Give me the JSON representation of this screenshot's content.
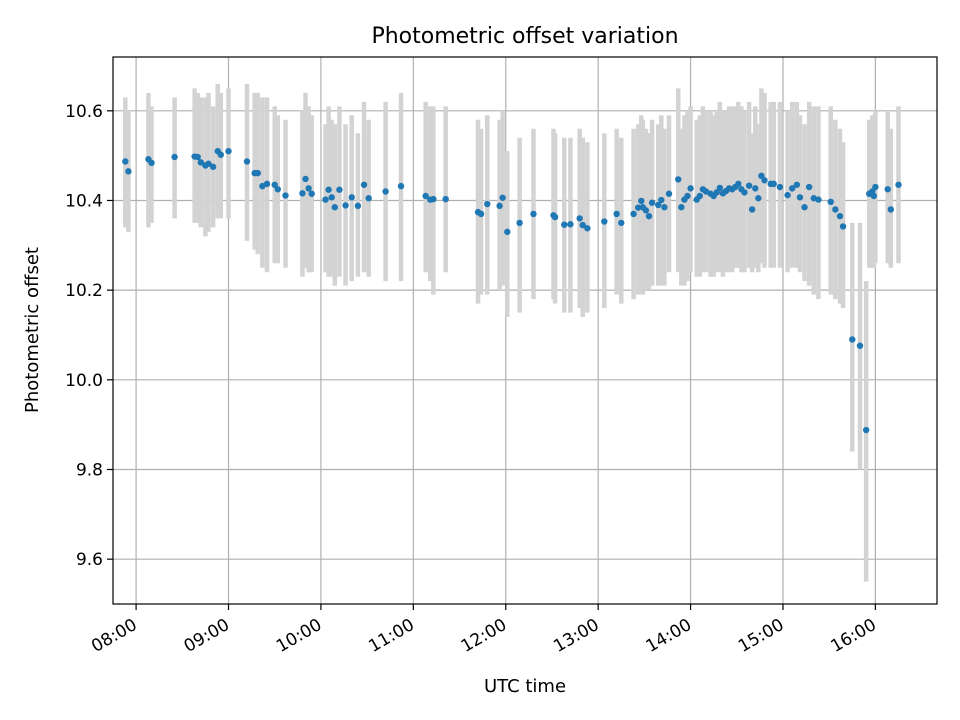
{
  "chart_data": {
    "type": "scatter",
    "title": "Photometric offset variation",
    "xlabel": "UTC time",
    "ylabel": "Photometric offset",
    "xlim": [
      "07:45",
      "16:40"
    ],
    "ylim": [
      9.5,
      10.72
    ],
    "x_ticks": [
      "08:00",
      "09:00",
      "10:00",
      "11:00",
      "12:00",
      "13:00",
      "14:00",
      "15:00",
      "16:00"
    ],
    "y_ticks": [
      "9.6",
      "9.8",
      "10.0",
      "10.2",
      "10.4",
      "10.6"
    ],
    "grid": true,
    "colors": {
      "point": "#1f77b4",
      "error_bar": "#d3d3d3"
    },
    "series": [
      {
        "x": [
          "07:53",
          "07:55",
          "08:08",
          "08:10",
          "08:25",
          "08:38",
          "08:40",
          "08:42",
          "08:45",
          "08:47",
          "08:50",
          "08:53",
          "08:55",
          "09:00",
          "09:12",
          "09:17",
          "09:19",
          "09:22",
          "09:25",
          "09:30",
          "09:32",
          "09:37",
          "09:48",
          "09:50",
          "09:52",
          "09:54",
          "10:03",
          "10:05",
          "10:07",
          "10:09",
          "10:12",
          "10:16",
          "10:20",
          "10:24",
          "10:28",
          "10:31",
          "10:42",
          "10:52",
          "11:08",
          "11:11",
          "11:13",
          "11:21",
          "11:42",
          "11:44",
          "11:48",
          "11:56",
          "11:58",
          "12:01",
          "12:09",
          "12:18",
          "12:31",
          "12:32",
          "12:38",
          "12:42",
          "12:48",
          "12:50",
          "12:53",
          "13:04",
          "13:12",
          "13:15",
          "13:23",
          "13:26",
          "13:28",
          "13:29",
          "13:31",
          "13:33",
          "13:35",
          "13:39",
          "13:41",
          "13:43",
          "13:46",
          "13:52",
          "13:54",
          "13:56",
          "13:58",
          "14:00",
          "14:04",
          "14:06",
          "14:08",
          "14:10",
          "14:13",
          "14:15",
          "14:17",
          "14:19",
          "14:21",
          "14:23",
          "14:25",
          "14:27",
          "14:29",
          "14:31",
          "14:33",
          "14:35",
          "14:38",
          "14:40",
          "14:42",
          "14:44",
          "14:46",
          "14:48",
          "14:52",
          "14:54",
          "14:58",
          "15:03",
          "15:06",
          "15:09",
          "15:11",
          "15:14",
          "15:17",
          "15:20",
          "15:23",
          "15:31",
          "15:34",
          "15:37",
          "15:39",
          "15:45",
          "15:50",
          "15:54",
          "15:56",
          "15:58",
          "15:59",
          "16:00",
          "16:08",
          "16:10",
          "16:15"
        ],
        "y": [
          10.487,
          10.465,
          10.492,
          10.484,
          10.497,
          10.498,
          10.497,
          10.485,
          10.478,
          10.482,
          10.475,
          10.51,
          10.502,
          10.51,
          10.487,
          10.461,
          10.461,
          10.432,
          10.437,
          10.435,
          10.425,
          10.411,
          10.416,
          10.448,
          10.427,
          10.415,
          10.402,
          10.424,
          10.407,
          10.385,
          10.424,
          10.389,
          10.407,
          10.388,
          10.435,
          10.405,
          10.42,
          10.432,
          10.41,
          10.402,
          10.403,
          10.403,
          10.374,
          10.37,
          10.392,
          10.388,
          10.406,
          10.33,
          10.35,
          10.37,
          10.367,
          10.363,
          10.346,
          10.347,
          10.36,
          10.345,
          10.338,
          10.353,
          10.37,
          10.35,
          10.37,
          10.384,
          10.399,
          10.385,
          10.378,
          10.365,
          10.395,
          10.39,
          10.401,
          10.385,
          10.415,
          10.447,
          10.385,
          10.402,
          10.41,
          10.427,
          10.402,
          10.41,
          10.425,
          10.42,
          10.415,
          10.41,
          10.418,
          10.428,
          10.416,
          10.421,
          10.427,
          10.425,
          10.43,
          10.437,
          10.425,
          10.418,
          10.433,
          10.38,
          10.427,
          10.405,
          10.455,
          10.445,
          10.437,
          10.437,
          10.43,
          10.412,
          10.427,
          10.435,
          10.407,
          10.385,
          10.43,
          10.405,
          10.402,
          10.397,
          10.38,
          10.365,
          10.342,
          10.09,
          10.076,
          9.888,
          10.415,
          10.42,
          10.41,
          10.43,
          10.425,
          10.38,
          10.435
        ],
        "error_low": [
          10.34,
          10.33,
          10.34,
          10.35,
          10.36,
          10.35,
          10.35,
          10.34,
          10.32,
          10.33,
          10.34,
          10.36,
          10.36,
          10.36,
          10.31,
          10.29,
          10.28,
          10.25,
          10.24,
          10.26,
          10.26,
          10.25,
          10.23,
          10.25,
          10.24,
          10.24,
          10.24,
          10.23,
          10.23,
          10.21,
          10.23,
          10.21,
          10.22,
          10.23,
          10.24,
          10.23,
          10.22,
          10.22,
          10.24,
          10.22,
          10.19,
          10.24,
          10.17,
          10.19,
          10.19,
          10.2,
          10.21,
          10.14,
          10.15,
          10.18,
          10.18,
          10.17,
          10.15,
          10.15,
          10.16,
          10.14,
          10.15,
          10.16,
          10.19,
          10.17,
          10.18,
          10.19,
          10.2,
          10.19,
          10.2,
          10.2,
          10.21,
          10.21,
          10.21,
          10.21,
          10.24,
          10.24,
          10.21,
          10.21,
          10.22,
          10.24,
          10.23,
          10.23,
          10.24,
          10.24,
          10.23,
          10.23,
          10.24,
          10.24,
          10.23,
          10.24,
          10.24,
          10.24,
          10.25,
          10.25,
          10.24,
          10.24,
          10.25,
          10.24,
          10.25,
          10.24,
          10.26,
          10.25,
          10.25,
          10.25,
          10.25,
          10.24,
          10.25,
          10.25,
          10.24,
          10.22,
          10.21,
          10.19,
          10.18,
          10.19,
          10.18,
          10.17,
          10.16,
          9.84,
          9.8,
          9.55,
          10.25,
          10.25,
          10.25,
          10.26,
          10.26,
          10.25,
          10.26
        ],
        "error_high": [
          10.63,
          10.6,
          10.64,
          10.61,
          10.63,
          10.65,
          10.64,
          10.63,
          10.63,
          10.64,
          10.61,
          10.66,
          10.64,
          10.65,
          10.66,
          10.64,
          10.64,
          10.63,
          10.63,
          10.61,
          10.59,
          10.58,
          10.6,
          10.64,
          10.61,
          10.59,
          10.57,
          10.61,
          10.58,
          10.57,
          10.61,
          10.57,
          10.59,
          10.55,
          10.62,
          10.58,
          10.62,
          10.64,
          10.62,
          10.61,
          10.61,
          10.61,
          10.58,
          10.56,
          10.59,
          10.58,
          10.6,
          10.51,
          10.54,
          10.56,
          10.56,
          10.55,
          10.54,
          10.54,
          10.56,
          10.54,
          10.53,
          10.55,
          10.56,
          10.54,
          10.56,
          10.57,
          10.59,
          10.58,
          10.56,
          10.55,
          10.58,
          10.57,
          10.59,
          10.56,
          10.59,
          10.65,
          10.56,
          10.59,
          10.6,
          10.61,
          10.58,
          10.59,
          10.61,
          10.6,
          10.6,
          10.59,
          10.6,
          10.62,
          10.6,
          10.6,
          10.61,
          10.61,
          10.61,
          10.62,
          10.61,
          10.6,
          10.62,
          10.55,
          10.61,
          10.57,
          10.65,
          10.64,
          10.62,
          10.62,
          10.62,
          10.6,
          10.62,
          10.62,
          10.59,
          10.57,
          10.62,
          10.61,
          10.61,
          10.61,
          10.58,
          10.56,
          10.53,
          10.35,
          10.35,
          10.22,
          10.58,
          10.59,
          10.57,
          10.6,
          10.6,
          10.56,
          10.61
        ]
      }
    ]
  }
}
